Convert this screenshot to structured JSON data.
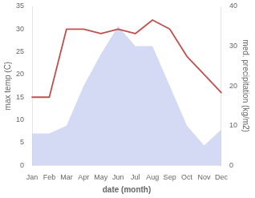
{
  "chart_data": {
    "type": "line",
    "xlabel": "date (month)",
    "ylabel": "max temp (C)",
    "y2label": "med. precipitation (kg/m2)",
    "categories": [
      "Jan",
      "Feb",
      "Mar",
      "Apr",
      "May",
      "Jun",
      "Jul",
      "Aug",
      "Sep",
      "Oct",
      "Nov",
      "Dec"
    ],
    "series": [
      {
        "type": "area",
        "axis": "y2",
        "color": "#c5cdf0",
        "values": [
          8,
          8,
          10,
          20,
          28,
          35,
          30,
          30,
          20,
          10,
          5,
          9
        ]
      },
      {
        "type": "line",
        "color": "#c0504d",
        "values": [
          15,
          15,
          30,
          30,
          29,
          30,
          29,
          32,
          30,
          24,
          20,
          16
        ]
      }
    ],
    "ylim": [
      0,
      35
    ],
    "yticks": [
      0,
      5,
      10,
      15,
      20,
      25,
      30,
      35
    ],
    "y2lim": [
      0,
      40
    ],
    "y2ticks": [
      0,
      10,
      20,
      30,
      40
    ],
    "grid": false
  }
}
